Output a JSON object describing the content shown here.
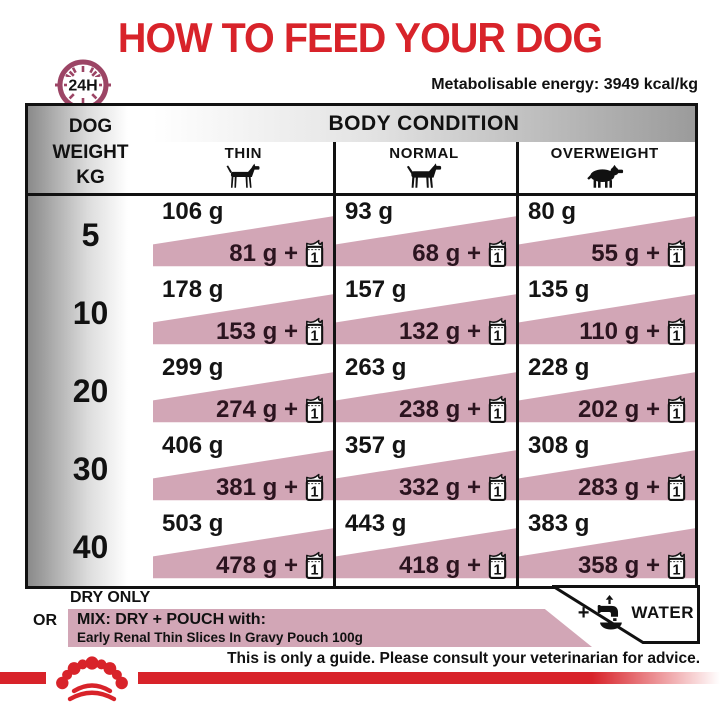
{
  "title": "HOW TO FEED YOUR DOG",
  "energy_note": "Metabolisable energy: 3949 kcal/kg",
  "clock_label": "24H",
  "table": {
    "weight_header_lines": [
      "DOG",
      "WEIGHT",
      "KG"
    ],
    "body_condition_header": "BODY CONDITION",
    "columns": [
      "THIN",
      "NORMAL",
      "OVERWEIGHT"
    ],
    "pouch_count": "1",
    "rows": [
      {
        "weight": "5",
        "cells": [
          {
            "dry": "106 g",
            "mix": "81 g +"
          },
          {
            "dry": "93 g",
            "mix": "68 g +"
          },
          {
            "dry": "80 g",
            "mix": "55 g +"
          }
        ]
      },
      {
        "weight": "10",
        "cells": [
          {
            "dry": "178 g",
            "mix": "153 g +"
          },
          {
            "dry": "157 g",
            "mix": "132 g +"
          },
          {
            "dry": "135 g",
            "mix": "110 g +"
          }
        ]
      },
      {
        "weight": "20",
        "cells": [
          {
            "dry": "299 g",
            "mix": "274 g +"
          },
          {
            "dry": "263 g",
            "mix": "238 g +"
          },
          {
            "dry": "228 g",
            "mix": "202 g +"
          }
        ]
      },
      {
        "weight": "30",
        "cells": [
          {
            "dry": "406 g",
            "mix": "381 g +"
          },
          {
            "dry": "357 g",
            "mix": "332 g +"
          },
          {
            "dry": "308 g",
            "mix": "283 g +"
          }
        ]
      },
      {
        "weight": "40",
        "cells": [
          {
            "dry": "503 g",
            "mix": "478 g +"
          },
          {
            "dry": "443 g",
            "mix": "418 g +"
          },
          {
            "dry": "383 g",
            "mix": "358 g +"
          }
        ]
      }
    ]
  },
  "legend": {
    "dry_only": "DRY ONLY",
    "or_label": "OR",
    "mix_title": "MIX: DRY + POUCH with:",
    "mix_subtitle": "Early Renal Thin Slices In Gravy Pouch 100g",
    "water_plus": "+",
    "water_label": "WATER"
  },
  "footer": {
    "disclaimer": "This is only a guide. Please consult your veterinarian for advice."
  },
  "colors": {
    "brand_red": "#d8232a",
    "pink": "#d2a6b6",
    "plum": "#9c4565",
    "ink": "#111111",
    "mix_text": "#2b141f"
  }
}
